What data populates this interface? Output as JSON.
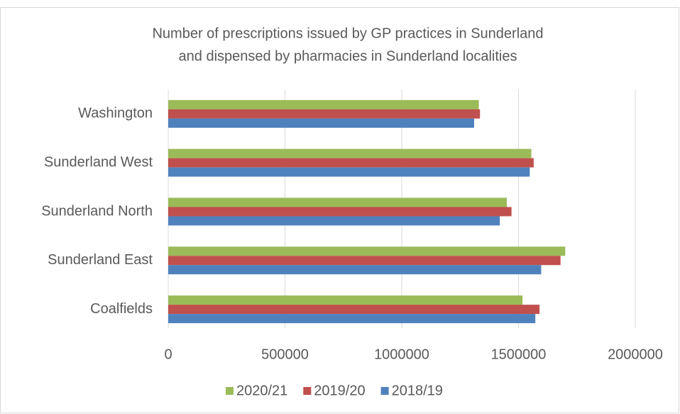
{
  "chart_data": {
    "type": "bar",
    "orientation": "horizontal",
    "title": [
      "Number of prescriptions issued by GP practices in Sunderland",
      "and dispensed by pharmacies in Sunderland  localities"
    ],
    "categories": [
      "Coalfields",
      "Sunderland East",
      "Sunderland North",
      "Sunderland West",
      "Washington"
    ],
    "series": [
      {
        "name": "2020/21",
        "color": "#9bbb59",
        "values": [
          1517000,
          1700000,
          1450000,
          1555000,
          1330000
        ]
      },
      {
        "name": "2019/20",
        "color": "#c0504d",
        "values": [
          1590000,
          1680000,
          1470000,
          1565000,
          1335000
        ]
      },
      {
        "name": "2018/19",
        "color": "#4f81bd",
        "values": [
          1572000,
          1597000,
          1420000,
          1548000,
          1310000
        ]
      }
    ],
    "xlim": [
      0,
      2000000
    ],
    "xticks": [
      0,
      500000,
      1000000,
      1500000,
      2000000
    ],
    "grid": true,
    "legend": "bottom"
  }
}
